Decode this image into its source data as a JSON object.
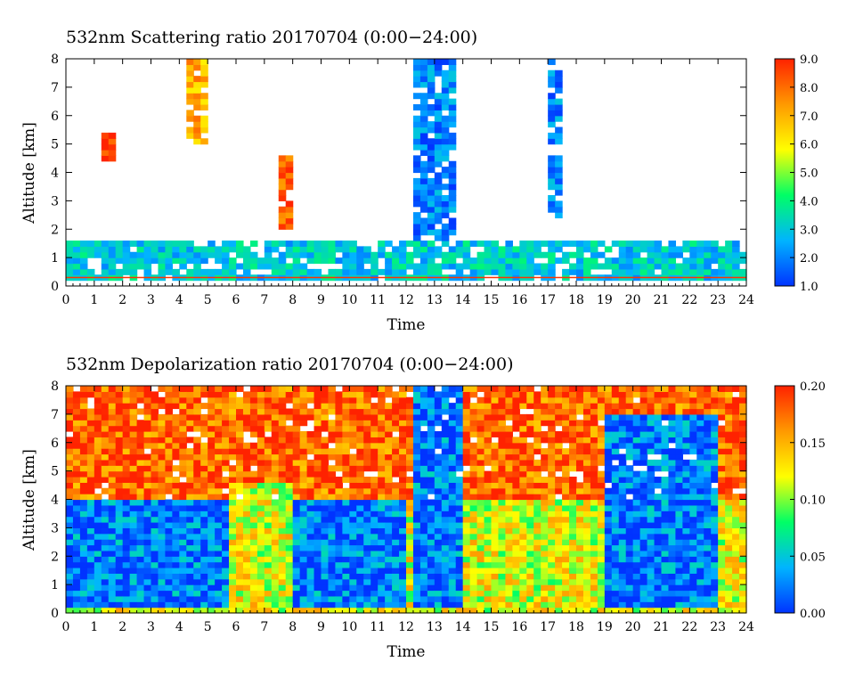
{
  "charts": [
    {
      "title": "532nm Scattering ratio  20170704 (0:00−24:00)",
      "xlabel": "Time",
      "ylabel": "Altitude [km]",
      "colorbar_ticks": [
        "1.0",
        "2.0",
        "3.0",
        "4.0",
        "5.0",
        "6.0",
        "7.0",
        "8.0",
        "9.0"
      ]
    },
    {
      "title": "532nm Depolarization ratio  20170704 (0:00−24:00)",
      "xlabel": "Time",
      "ylabel": "Altitude [km]",
      "colorbar_ticks": [
        "0.00",
        "0.05",
        "0.10",
        "0.15",
        "0.20"
      ]
    }
  ],
  "chart_data": [
    {
      "type": "heatmap",
      "title": "532nm Scattering ratio  20170704 (0:00−24:00)",
      "xlabel": "Time",
      "ylabel": "Altitude [km]",
      "xlim": [
        0,
        24
      ],
      "ylim": [
        0,
        8
      ],
      "x_ticks": [
        0,
        1,
        2,
        3,
        4,
        5,
        6,
        7,
        8,
        9,
        10,
        11,
        12,
        13,
        14,
        15,
        16,
        17,
        18,
        19,
        20,
        21,
        22,
        23,
        24
      ],
      "y_ticks": [
        0,
        1,
        2,
        3,
        4,
        5,
        6,
        7,
        8
      ],
      "colorbar": {
        "min": 1.0,
        "max": 9.0,
        "ticks": [
          1.0,
          2.0,
          3.0,
          4.0,
          5.0,
          6.0,
          7.0,
          8.0,
          9.0
        ],
        "colors": [
          "#0033ff",
          "#00ccff",
          "#00ff66",
          "#ffff00",
          "#ff9900",
          "#ff2200"
        ]
      },
      "features": [
        {
          "x": [
            0,
            24
          ],
          "y": [
            0.3,
            1.5
          ],
          "value": 3.0
        },
        {
          "x": [
            1.3,
            1.8
          ],
          "y": [
            4.5,
            5.3
          ],
          "value": 9.0
        },
        {
          "x": [
            4.3,
            4.9
          ],
          "y": [
            5.0,
            8.0
          ],
          "value": 7.0
        },
        {
          "x": [
            7.4,
            7.9
          ],
          "y": [
            2.0,
            4.5
          ],
          "value": 8.0
        },
        {
          "x": [
            12.2,
            13.8
          ],
          "y": [
            0.3,
            8.0
          ],
          "value": 2.0
        },
        {
          "x": [
            17.0,
            17.4
          ],
          "y": [
            2.3,
            8.0
          ],
          "value": 2.0
        }
      ]
    },
    {
      "type": "heatmap",
      "title": "532nm Depolarization ratio  20170704 (0:00−24:00)",
      "xlabel": "Time",
      "ylabel": "Altitude [km]",
      "xlim": [
        0,
        24
      ],
      "ylim": [
        0,
        8
      ],
      "x_ticks": [
        0,
        1,
        2,
        3,
        4,
        5,
        6,
        7,
        8,
        9,
        10,
        11,
        12,
        13,
        14,
        15,
        16,
        17,
        18,
        19,
        20,
        21,
        22,
        23,
        24
      ],
      "y_ticks": [
        0,
        1,
        2,
        3,
        4,
        5,
        6,
        7,
        8
      ],
      "colorbar": {
        "min": 0.0,
        "max": 0.2,
        "ticks": [
          0.0,
          0.05,
          0.1,
          0.15,
          0.2
        ],
        "colors": [
          "#0033ff",
          "#00ccff",
          "#00ff66",
          "#ffff00",
          "#ff9900",
          "#ff2200"
        ]
      },
      "features": [
        {
          "x": [
            0,
            24
          ],
          "y": [
            4.0,
            8.0
          ],
          "value": 0.18
        },
        {
          "x": [
            0,
            12
          ],
          "y": [
            0.2,
            4.0
          ],
          "value": 0.02
        },
        {
          "x": [
            5.8,
            8.0
          ],
          "y": [
            0.0,
            4.5
          ],
          "value": 0.12
        },
        {
          "x": [
            12.2,
            14.0
          ],
          "y": [
            0.2,
            8.0
          ],
          "value": 0.02
        },
        {
          "x": [
            19.0,
            23.0
          ],
          "y": [
            0.2,
            7.0
          ],
          "value": 0.02
        }
      ]
    }
  ]
}
